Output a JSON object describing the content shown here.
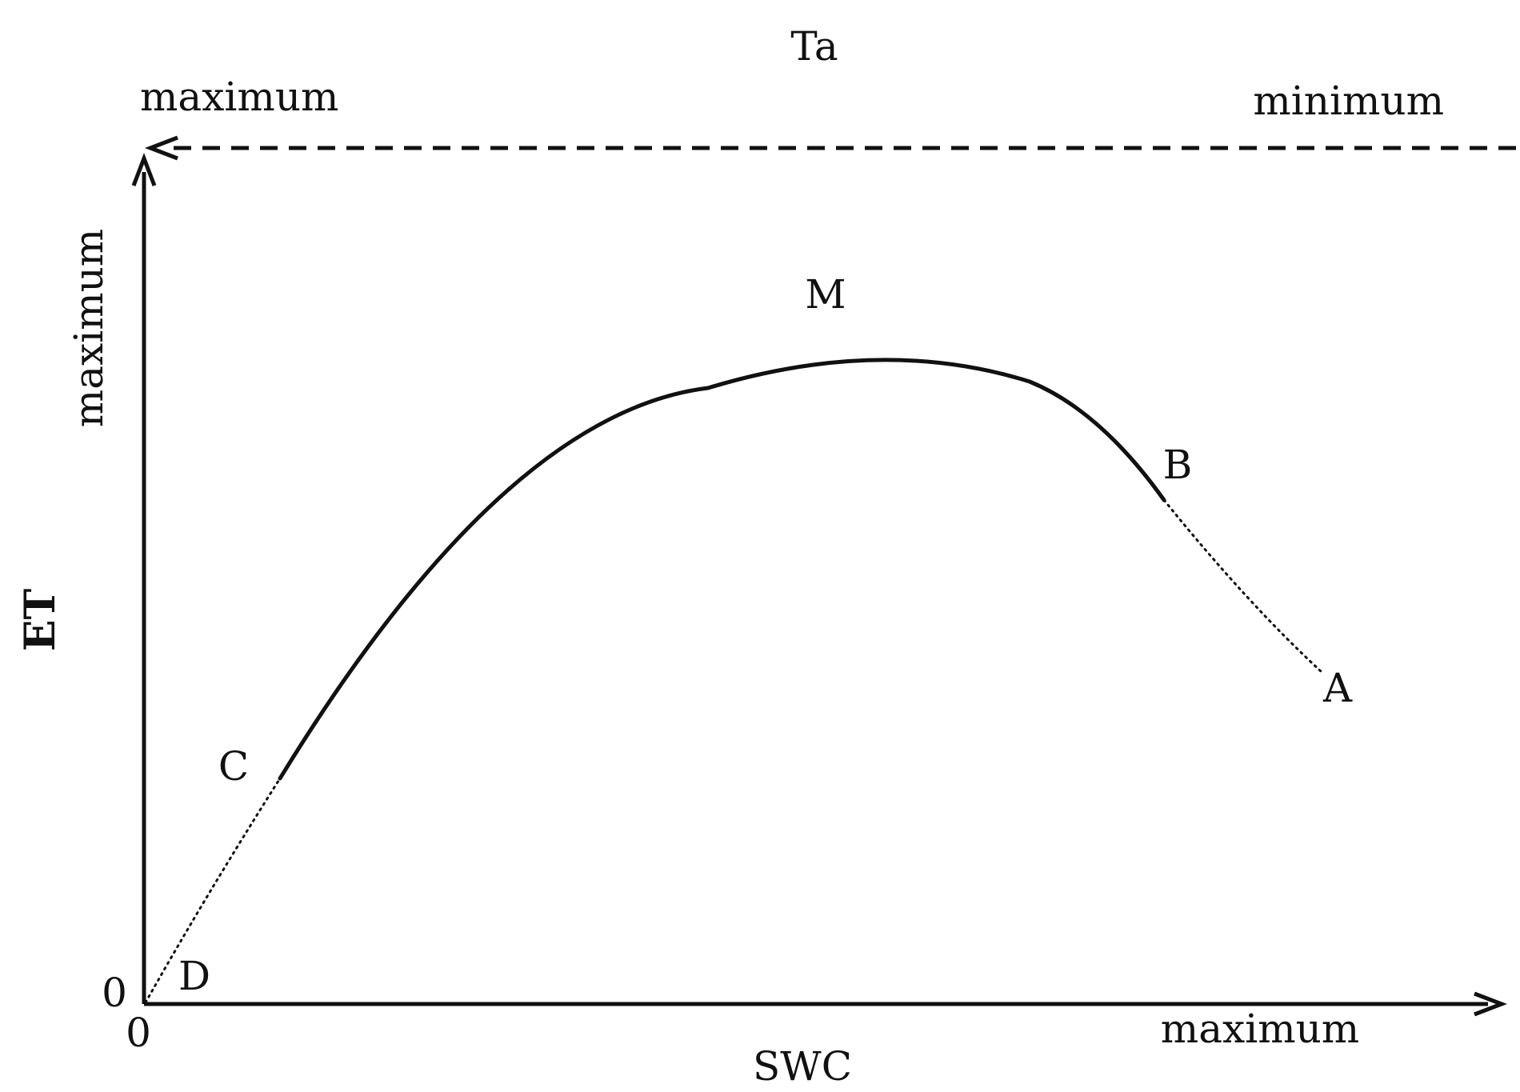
{
  "ta_axis": {
    "title": "Ta",
    "left_label": "maximum",
    "right_label": "minimum"
  },
  "y_axis": {
    "title": "ET",
    "max_label": "maximum",
    "origin_label": "0"
  },
  "x_axis": {
    "title": "SWC",
    "max_label": "maximum",
    "origin_label": "0"
  },
  "points": {
    "M": "M",
    "B": "B",
    "A": "A",
    "C": "C",
    "D": "D"
  },
  "colors": {
    "ink": "#111111",
    "background": "#ffffff"
  }
}
